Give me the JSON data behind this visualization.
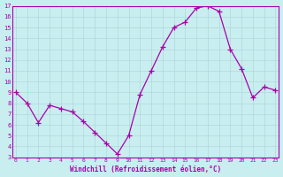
{
  "title": "",
  "xlabel": "Windchill (Refroidissement éolien,°C)",
  "ylabel": "",
  "background_color": "#c8eef0",
  "grid_color": "#b0d8da",
  "line_color": "#aa00aa",
  "marker_color": "#aa00aa",
  "xlim": [
    0,
    23
  ],
  "ylim": [
    3,
    17
  ],
  "xticks": [
    0,
    1,
    2,
    3,
    4,
    5,
    6,
    7,
    8,
    9,
    10,
    11,
    12,
    13,
    14,
    15,
    16,
    17,
    18,
    19,
    20,
    21,
    22,
    23
  ],
  "yticks": [
    3,
    4,
    5,
    6,
    7,
    8,
    9,
    10,
    11,
    12,
    13,
    14,
    15,
    16,
    17
  ],
  "hours": [
    0,
    1,
    2,
    3,
    4,
    5,
    6,
    7,
    8,
    9,
    10,
    11,
    12,
    13,
    14,
    15,
    16,
    17,
    18,
    19,
    20,
    21,
    22,
    23
  ],
  "values": [
    9.0,
    8.0,
    6.2,
    7.8,
    7.5,
    7.2,
    6.3,
    5.3,
    4.3,
    3.3,
    5.0,
    8.8,
    11.0,
    13.2,
    15.0,
    15.5,
    16.8,
    17.0,
    16.5,
    13.0,
    11.2,
    8.5,
    9.5,
    9.2
  ]
}
